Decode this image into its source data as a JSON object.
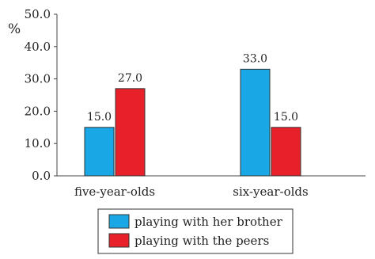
{
  "chart_data": {
    "type": "bar",
    "ylabel": "%",
    "ylim": [
      0,
      50
    ],
    "yticks": [
      "0.0",
      "10.0",
      "20.0",
      "30.0",
      "40.0",
      "50.0"
    ],
    "categories": [
      "five-year-olds",
      "six-year-olds"
    ],
    "series": [
      {
        "name": "playing with her brother",
        "color": "#1aa7e6",
        "values": [
          15.0,
          33.0
        ],
        "labels": [
          "15.0",
          "33.0"
        ]
      },
      {
        "name": "playing with the peers",
        "color": "#e8202a",
        "values": [
          27.0,
          15.0
        ],
        "labels": [
          "27.0",
          "15.0"
        ]
      }
    ],
    "grid": false,
    "legend_position": "bottom"
  }
}
